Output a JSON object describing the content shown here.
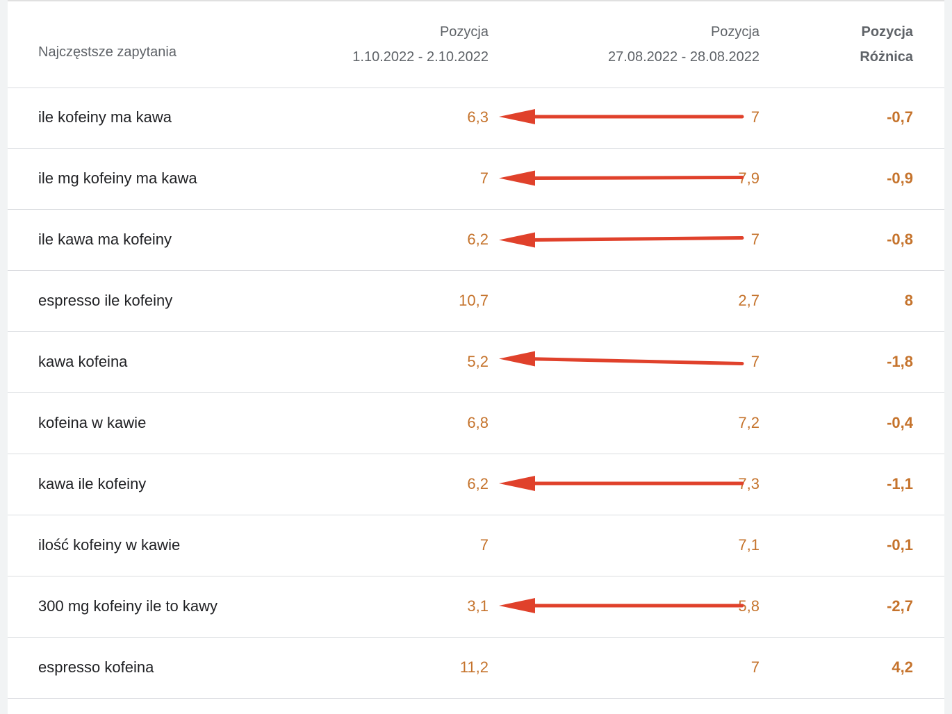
{
  "header": {
    "query_label": "Najczęstsze zapytania",
    "col1_title": "Pozycja",
    "col1_sub": "1.10.2022 - 2.10.2022",
    "col2_title": "Pozycja",
    "col2_sub": "27.08.2022 - 28.08.2022",
    "col3_title": "Pozycja",
    "col3_sub": "Różnica"
  },
  "rows": [
    {
      "query": "ile kofeiny ma kawa",
      "pos_new": "6,3",
      "pos_old": "7",
      "diff": "-0,7",
      "arrow": true
    },
    {
      "query": "ile mg kofeiny ma kawa",
      "pos_new": "7",
      "pos_old": "7,9",
      "diff": "-0,9",
      "arrow": true
    },
    {
      "query": "ile kawa ma kofeiny",
      "pos_new": "6,2",
      "pos_old": "7",
      "diff": "-0,8",
      "arrow": true
    },
    {
      "query": "espresso ile kofeiny",
      "pos_new": "10,7",
      "pos_old": "2,7",
      "diff": "8",
      "arrow": false
    },
    {
      "query": "kawa kofeina",
      "pos_new": "5,2",
      "pos_old": "7",
      "diff": "-1,8",
      "arrow": true
    },
    {
      "query": "kofeina w kawie",
      "pos_new": "6,8",
      "pos_old": "7,2",
      "diff": "-0,4",
      "arrow": false
    },
    {
      "query": "kawa ile kofeiny",
      "pos_new": "6,2",
      "pos_old": "7,3",
      "diff": "-1,1",
      "arrow": true
    },
    {
      "query": "ilość kofeiny w kawie",
      "pos_new": "7",
      "pos_old": "7,1",
      "diff": "-0,1",
      "arrow": false
    },
    {
      "query": "300 mg kofeiny ile to kawy",
      "pos_new": "3,1",
      "pos_old": "5,8",
      "diff": "-2,7",
      "arrow": true
    },
    {
      "query": "espresso kofeina",
      "pos_new": "11,2",
      "pos_old": "7",
      "diff": "4,2",
      "arrow": false
    }
  ],
  "colors": {
    "value": "#c5732c",
    "arrow": "#e0412b",
    "text": "#202124",
    "muted": "#5f6368"
  }
}
